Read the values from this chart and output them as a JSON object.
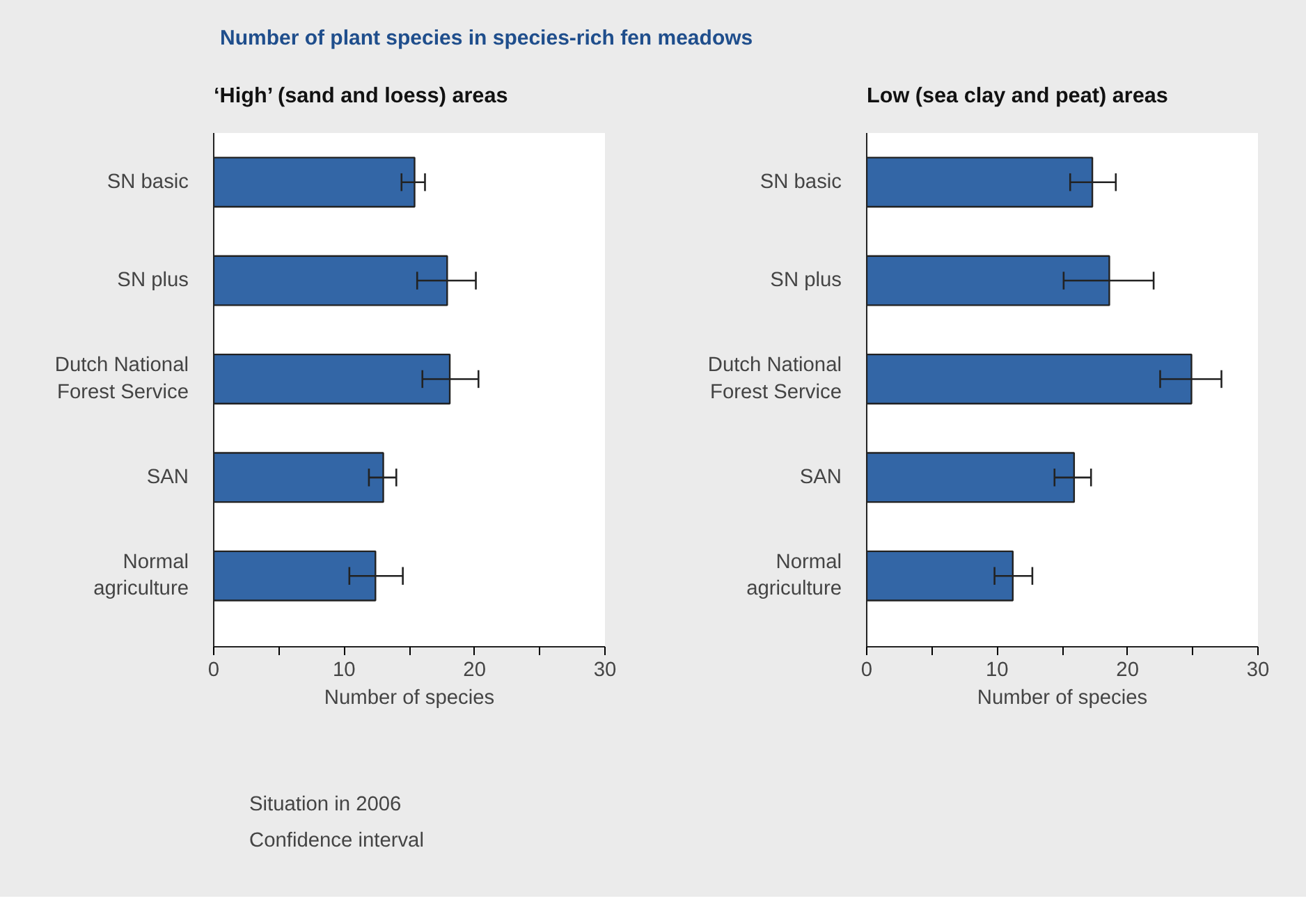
{
  "chart_data": [
    {
      "type": "bar",
      "orientation": "horizontal",
      "title": "Number of plant species in species-rich fen meadows",
      "subtitle": "‘High’ (sand and loess) areas",
      "xlabel": "Number of species",
      "categories": [
        "SN basic",
        "SN plus",
        "Dutch National Forest Service",
        "SAN",
        "Normal agriculture"
      ],
      "series": [
        {
          "name": "Situation in 2006",
          "color": "#3366a6",
          "values": [
            15.4,
            17.9,
            18.1,
            13.0,
            12.4
          ],
          "errors": [
            [
              14.4,
              16.2
            ],
            [
              15.6,
              20.1
            ],
            [
              16.0,
              20.3
            ],
            [
              11.9,
              14.0
            ],
            [
              10.4,
              14.5
            ]
          ]
        }
      ],
      "xlim": [
        0,
        30
      ],
      "xticks": [
        0,
        {
          "value": 5,
          "label": null
        },
        10,
        {
          "value": 15,
          "label": null
        },
        20,
        {
          "value": 25,
          "label": null
        },
        30
      ],
      "grid": false,
      "legend": "bottom left",
      "annotations": [
        "Confidence interval"
      ]
    },
    {
      "type": "bar",
      "orientation": "horizontal",
      "subtitle": "Low (sea clay and peat) areas",
      "xlabel": "Number of species",
      "categories": [
        "SN basic",
        "SN plus",
        "Dutch National Forest Service",
        "SAN",
        "Normal agriculture"
      ],
      "series": [
        {
          "color": "#3366a6",
          "values": [
            17.3,
            18.6,
            24.9,
            15.9,
            11.2
          ],
          "errors": [
            [
              15.6,
              19.1
            ],
            [
              15.1,
              22.0
            ],
            [
              22.5,
              27.2
            ],
            [
              14.4,
              17.2
            ],
            [
              9.8,
              12.7
            ]
          ]
        }
      ],
      "xlim": [
        0,
        30
      ],
      "xticks": [
        0,
        {
          "value": 5,
          "label": null
        },
        10,
        {
          "value": 15,
          "label": null
        },
        20,
        {
          "value": 25,
          "label": null
        },
        30
      ],
      "grid": false
    }
  ]
}
